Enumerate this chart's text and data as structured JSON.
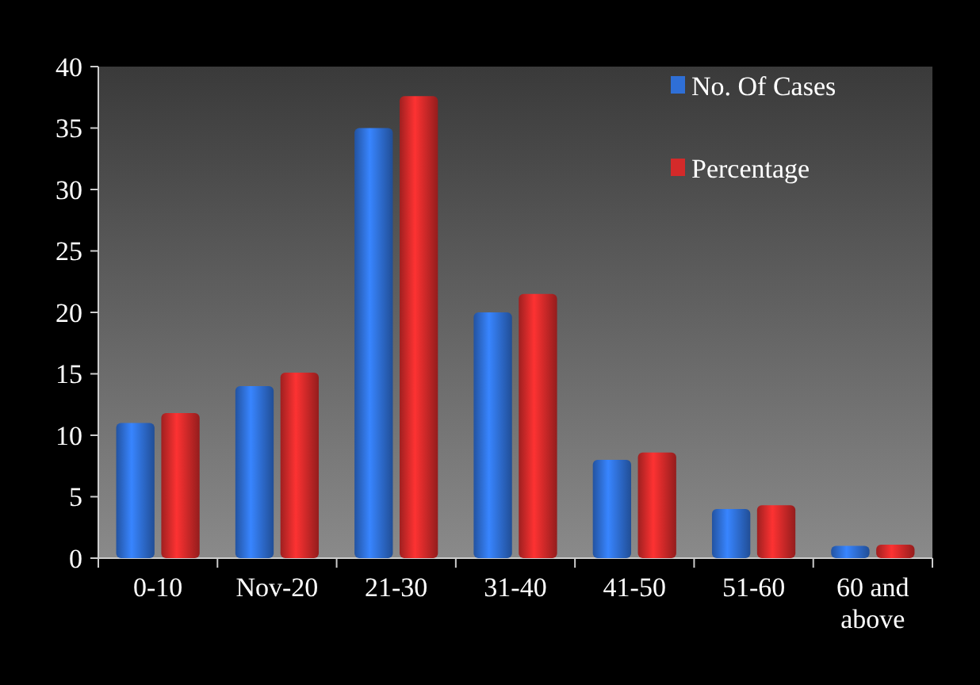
{
  "chart_data": {
    "type": "bar",
    "categories": [
      "0-10",
      "Nov-20",
      "21-30",
      "31-40",
      "41-50",
      "51-60",
      "60 and above"
    ],
    "series": [
      {
        "name": "No. Of Cases",
        "color": "#2f6fd6",
        "values": [
          11,
          14,
          35,
          20,
          8,
          4,
          1
        ]
      },
      {
        "name": "Percentage",
        "color": "#d42a2a",
        "values": [
          11.8,
          15.1,
          37.6,
          21.5,
          8.6,
          4.3,
          1.1
        ]
      }
    ],
    "ylim": [
      0,
      40
    ],
    "yticks": [
      0,
      5,
      10,
      15,
      20,
      25,
      30,
      35,
      40
    ],
    "grid": false,
    "legend": "top right"
  }
}
